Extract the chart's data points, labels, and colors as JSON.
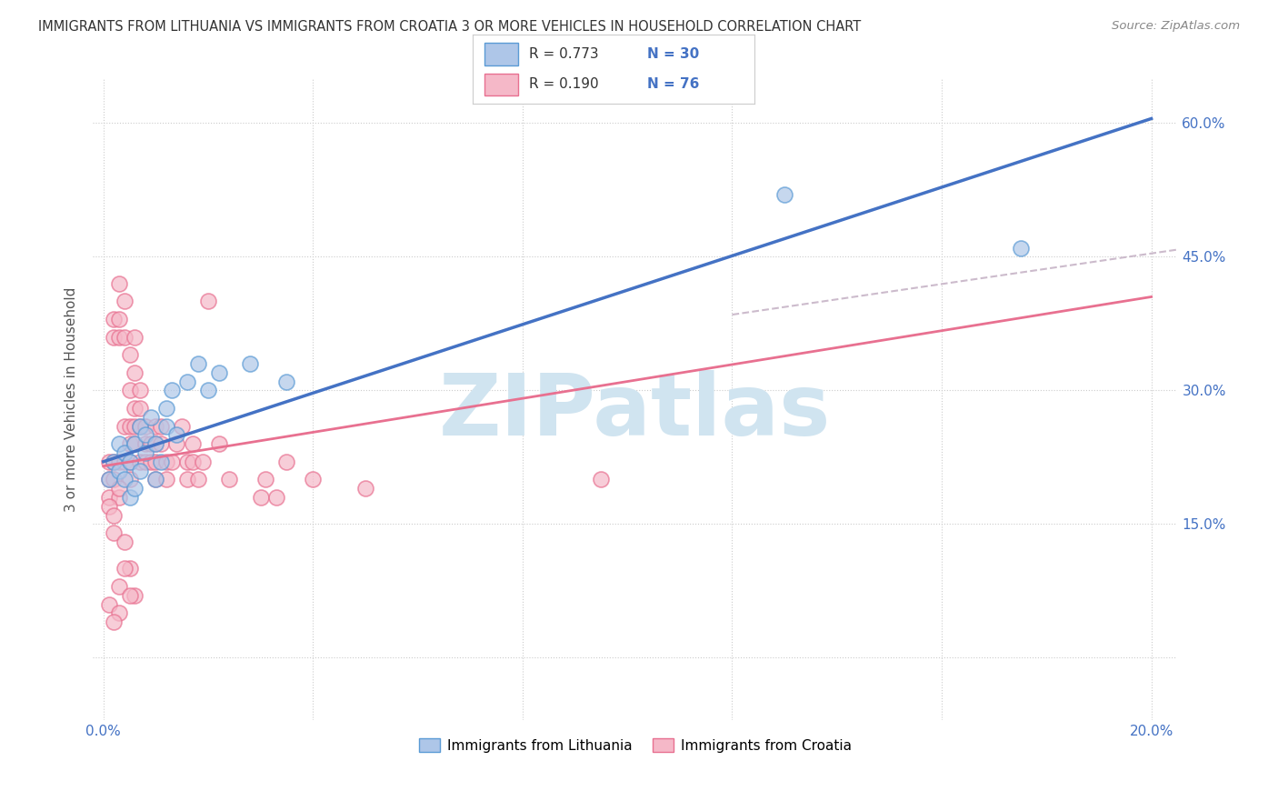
{
  "title": "IMMIGRANTS FROM LITHUANIA VS IMMIGRANTS FROM CROATIA 3 OR MORE VEHICLES IN HOUSEHOLD CORRELATION CHART",
  "source": "Source: ZipAtlas.com",
  "ylabel": "3 or more Vehicles in Household",
  "xlabel": "",
  "xlim": [
    -0.002,
    0.205
  ],
  "ylim": [
    -0.07,
    0.65
  ],
  "xticks": [
    0.0,
    0.04,
    0.08,
    0.12,
    0.16,
    0.2
  ],
  "xtick_labels": [
    "0.0%",
    "",
    "",
    "",
    "",
    "20.0%"
  ],
  "ytick_vals": [
    0.0,
    0.15,
    0.3,
    0.45,
    0.6
  ],
  "ytick_labels": [
    "",
    "15.0%",
    "30.0%",
    "45.0%",
    "60.0%"
  ],
  "legend_label1": "Immigrants from Lithuania",
  "legend_label2": "Immigrants from Croatia",
  "color_lithuania_fill": "#aec6e8",
  "color_lithuania_edge": "#5b9bd5",
  "color_croatia_fill": "#f5b8c8",
  "color_croatia_edge": "#e87090",
  "color_line_lithuania": "#4472c4",
  "color_line_croatia": "#e87090",
  "color_line_dashed": "#ccbbcc",
  "watermark_text": "ZIPatlas",
  "watermark_color": "#d0e4f0",
  "grid_color": "#cccccc",
  "background_color": "#ffffff",
  "title_color": "#333333",
  "axis_tick_color": "#4472c4",
  "line_lit_x0": 0.0,
  "line_lit_y0": 0.22,
  "line_lit_x1": 0.2,
  "line_lit_y1": 0.605,
  "line_cro_x0": 0.0,
  "line_cro_y0": 0.215,
  "line_cro_x1": 0.2,
  "line_cro_y1": 0.405,
  "line_dash_x0": 0.12,
  "line_dash_y0": 0.385,
  "line_dash_x1": 0.205,
  "line_dash_y1": 0.458,
  "lit_x": [
    0.001,
    0.002,
    0.003,
    0.003,
    0.004,
    0.004,
    0.005,
    0.005,
    0.006,
    0.006,
    0.007,
    0.007,
    0.008,
    0.008,
    0.009,
    0.01,
    0.01,
    0.011,
    0.012,
    0.012,
    0.013,
    0.014,
    0.016,
    0.018,
    0.02,
    0.022,
    0.028,
    0.035,
    0.13,
    0.175
  ],
  "lit_y": [
    0.2,
    0.22,
    0.21,
    0.24,
    0.2,
    0.23,
    0.18,
    0.22,
    0.19,
    0.24,
    0.21,
    0.26,
    0.23,
    0.25,
    0.27,
    0.2,
    0.24,
    0.22,
    0.26,
    0.28,
    0.3,
    0.25,
    0.31,
    0.33,
    0.3,
    0.32,
    0.33,
    0.31,
    0.52,
    0.46
  ],
  "cro_x": [
    0.001,
    0.001,
    0.001,
    0.002,
    0.002,
    0.002,
    0.002,
    0.003,
    0.003,
    0.003,
    0.003,
    0.003,
    0.004,
    0.004,
    0.004,
    0.004,
    0.005,
    0.005,
    0.005,
    0.005,
    0.005,
    0.005,
    0.006,
    0.006,
    0.006,
    0.006,
    0.006,
    0.007,
    0.007,
    0.007,
    0.007,
    0.008,
    0.008,
    0.008,
    0.009,
    0.009,
    0.01,
    0.01,
    0.01,
    0.01,
    0.011,
    0.011,
    0.012,
    0.012,
    0.013,
    0.014,
    0.015,
    0.016,
    0.016,
    0.017,
    0.017,
    0.018,
    0.019,
    0.02,
    0.022,
    0.024,
    0.03,
    0.031,
    0.033,
    0.035,
    0.04,
    0.001,
    0.002,
    0.003,
    0.05,
    0.095,
    0.002,
    0.004,
    0.005,
    0.003,
    0.006,
    0.001,
    0.003,
    0.004,
    0.005,
    0.002
  ],
  "cro_y": [
    0.22,
    0.2,
    0.18,
    0.38,
    0.36,
    0.22,
    0.2,
    0.42,
    0.38,
    0.36,
    0.22,
    0.18,
    0.4,
    0.36,
    0.26,
    0.22,
    0.34,
    0.3,
    0.26,
    0.24,
    0.22,
    0.2,
    0.36,
    0.32,
    0.28,
    0.26,
    0.24,
    0.3,
    0.28,
    0.26,
    0.22,
    0.26,
    0.24,
    0.22,
    0.24,
    0.22,
    0.26,
    0.24,
    0.22,
    0.2,
    0.26,
    0.24,
    0.22,
    0.2,
    0.22,
    0.24,
    0.26,
    0.22,
    0.2,
    0.24,
    0.22,
    0.2,
    0.22,
    0.4,
    0.24,
    0.2,
    0.18,
    0.2,
    0.18,
    0.22,
    0.2,
    0.17,
    0.16,
    0.19,
    0.19,
    0.2,
    0.14,
    0.13,
    0.1,
    0.08,
    0.07,
    0.06,
    0.05,
    0.1,
    0.07,
    0.04
  ]
}
